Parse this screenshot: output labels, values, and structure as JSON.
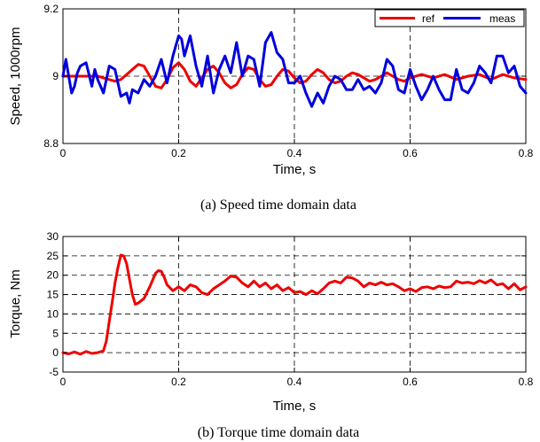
{
  "chart_data": [
    {
      "type": "line",
      "caption": "(a) Speed time domain data",
      "xlabel": "Time, s",
      "ylabel": "Speed, 1000rpm",
      "xlim": [
        0,
        0.8
      ],
      "ylim": [
        8.8,
        9.2
      ],
      "xticks": [
        "0",
        "0.2",
        "0.4",
        "0.6",
        "0.8"
      ],
      "yticks": [
        "8.8",
        "9",
        "9.2"
      ],
      "grid": "dashed at major x ticks and y = 9",
      "legend_position": "top-right",
      "colors": {
        "ref": "#ee0000",
        "meas": "#0000dd"
      },
      "series": [
        {
          "name": "ref",
          "x": [
            0,
            0.02,
            0.04,
            0.06,
            0.07,
            0.08,
            0.09,
            0.1,
            0.11,
            0.12,
            0.13,
            0.14,
            0.15,
            0.16,
            0.17,
            0.18,
            0.19,
            0.2,
            0.21,
            0.22,
            0.23,
            0.24,
            0.25,
            0.26,
            0.27,
            0.28,
            0.29,
            0.3,
            0.31,
            0.32,
            0.33,
            0.34,
            0.35,
            0.36,
            0.37,
            0.38,
            0.39,
            0.4,
            0.41,
            0.42,
            0.43,
            0.44,
            0.45,
            0.46,
            0.47,
            0.48,
            0.49,
            0.5,
            0.51,
            0.52,
            0.53,
            0.54,
            0.55,
            0.56,
            0.57,
            0.58,
            0.59,
            0.6,
            0.62,
            0.64,
            0.66,
            0.68,
            0.7,
            0.72,
            0.74,
            0.76,
            0.78,
            0.8
          ],
          "values": [
            9.0,
            9.0,
            9.0,
            9.0,
            8.995,
            8.99,
            8.985,
            8.99,
            9.005,
            9.02,
            9.035,
            9.03,
            9.0,
            8.97,
            8.965,
            8.99,
            9.025,
            9.04,
            9.02,
            8.985,
            8.97,
            8.995,
            9.02,
            9.03,
            9.01,
            8.98,
            8.965,
            8.975,
            9.005,
            9.025,
            9.02,
            8.99,
            8.97,
            8.975,
            9.0,
            9.02,
            9.015,
            8.995,
            8.98,
            8.985,
            9.005,
            9.02,
            9.01,
            8.99,
            8.98,
            8.985,
            9.0,
            9.01,
            9.005,
            8.995,
            8.985,
            8.99,
            9.0,
            9.01,
            9.0,
            8.99,
            8.985,
            8.995,
            9.005,
            8.995,
            9.005,
            8.99,
            9.0,
            9.005,
            8.99,
            9.005,
            8.995,
            8.99
          ]
        },
        {
          "name": "meas",
          "x": [
            0,
            0.005,
            0.01,
            0.015,
            0.02,
            0.025,
            0.03,
            0.04,
            0.05,
            0.055,
            0.06,
            0.07,
            0.08,
            0.09,
            0.1,
            0.11,
            0.115,
            0.12,
            0.13,
            0.14,
            0.15,
            0.16,
            0.17,
            0.18,
            0.19,
            0.2,
            0.205,
            0.21,
            0.22,
            0.23,
            0.24,
            0.25,
            0.26,
            0.27,
            0.28,
            0.29,
            0.3,
            0.31,
            0.32,
            0.33,
            0.34,
            0.35,
            0.36,
            0.37,
            0.38,
            0.39,
            0.4,
            0.41,
            0.42,
            0.43,
            0.44,
            0.45,
            0.46,
            0.47,
            0.48,
            0.49,
            0.5,
            0.51,
            0.52,
            0.53,
            0.54,
            0.55,
            0.56,
            0.57,
            0.58,
            0.59,
            0.6,
            0.61,
            0.62,
            0.63,
            0.64,
            0.65,
            0.66,
            0.67,
            0.68,
            0.69,
            0.7,
            0.71,
            0.72,
            0.73,
            0.74,
            0.75,
            0.76,
            0.77,
            0.78,
            0.79,
            0.8
          ],
          "values": [
            9.0,
            9.05,
            9.0,
            8.95,
            8.97,
            9.01,
            9.03,
            9.04,
            8.97,
            9.02,
            8.99,
            8.95,
            9.03,
            9.02,
            8.94,
            8.95,
            8.92,
            8.96,
            8.95,
            8.99,
            8.97,
            9.0,
            9.05,
            8.98,
            9.06,
            9.12,
            9.11,
            9.06,
            9.12,
            9.03,
            8.97,
            9.06,
            8.95,
            9.02,
            9.06,
            9.01,
            9.1,
            9.0,
            9.06,
            9.05,
            8.97,
            9.1,
            9.13,
            9.07,
            9.05,
            8.98,
            8.98,
            9.0,
            8.95,
            8.91,
            8.95,
            8.92,
            8.97,
            9.0,
            8.99,
            8.96,
            8.96,
            8.99,
            8.96,
            8.97,
            8.95,
            8.98,
            9.05,
            9.03,
            8.96,
            8.95,
            9.02,
            8.97,
            8.93,
            8.96,
            9.0,
            8.96,
            8.93,
            8.93,
            9.02,
            8.96,
            8.95,
            8.98,
            9.03,
            9.01,
            8.98,
            9.06,
            9.06,
            9.01,
            9.03,
            8.97,
            8.95
          ]
        }
      ]
    },
    {
      "type": "line",
      "caption": "(b) Torque time domain data",
      "xlabel": "Time, s",
      "ylabel": "Torque, Nm",
      "xlim": [
        0,
        0.8
      ],
      "ylim": [
        -5,
        30
      ],
      "xticks": [
        "0",
        "0.2",
        "0.4",
        "0.6",
        "0.8"
      ],
      "yticks": [
        "-5",
        "0",
        "5",
        "10",
        "15",
        "20",
        "25",
        "30"
      ],
      "grid": "dashed at major x and y ticks",
      "colors": {
        "torque": "#ee0000"
      },
      "series": [
        {
          "name": "",
          "x": [
            0,
            0.01,
            0.02,
            0.03,
            0.04,
            0.05,
            0.06,
            0.07,
            0.075,
            0.08,
            0.085,
            0.09,
            0.095,
            0.1,
            0.105,
            0.11,
            0.115,
            0.12,
            0.125,
            0.13,
            0.14,
            0.15,
            0.16,
            0.165,
            0.17,
            0.175,
            0.18,
            0.19,
            0.2,
            0.21,
            0.22,
            0.23,
            0.24,
            0.25,
            0.26,
            0.27,
            0.28,
            0.29,
            0.3,
            0.31,
            0.32,
            0.33,
            0.34,
            0.35,
            0.36,
            0.37,
            0.38,
            0.39,
            0.4,
            0.41,
            0.42,
            0.43,
            0.44,
            0.45,
            0.46,
            0.47,
            0.48,
            0.49,
            0.5,
            0.51,
            0.52,
            0.53,
            0.54,
            0.55,
            0.56,
            0.57,
            0.58,
            0.59,
            0.6,
            0.61,
            0.62,
            0.63,
            0.64,
            0.65,
            0.66,
            0.67,
            0.68,
            0.69,
            0.7,
            0.71,
            0.72,
            0.73,
            0.74,
            0.75,
            0.76,
            0.77,
            0.78,
            0.79,
            0.8
          ],
          "values": [
            0.0,
            -0.3,
            0.2,
            -0.4,
            0.3,
            -0.2,
            0.0,
            0.5,
            3.0,
            8.0,
            13.0,
            18.0,
            22.0,
            25.2,
            25.0,
            23.0,
            19.0,
            15.0,
            12.5,
            12.8,
            14.0,
            17.0,
            20.5,
            21.2,
            21.0,
            19.5,
            17.5,
            16.0,
            17.0,
            16.0,
            17.5,
            17.0,
            15.5,
            15.0,
            16.5,
            17.5,
            18.5,
            19.8,
            19.5,
            18.0,
            17.0,
            18.5,
            17.0,
            18.0,
            16.5,
            17.5,
            16.0,
            16.8,
            15.5,
            15.8,
            15.0,
            16.0,
            15.2,
            16.5,
            18.0,
            18.5,
            18.0,
            19.5,
            19.3,
            18.5,
            17.0,
            18.0,
            17.5,
            18.2,
            17.5,
            17.8,
            17.0,
            16.0,
            16.5,
            15.8,
            16.8,
            17.0,
            16.5,
            17.2,
            16.8,
            17.0,
            18.5,
            18.0,
            18.2,
            17.8,
            18.6,
            18.0,
            18.8,
            17.5,
            17.8,
            16.5,
            17.8,
            16.2,
            17.0
          ]
        }
      ]
    }
  ]
}
